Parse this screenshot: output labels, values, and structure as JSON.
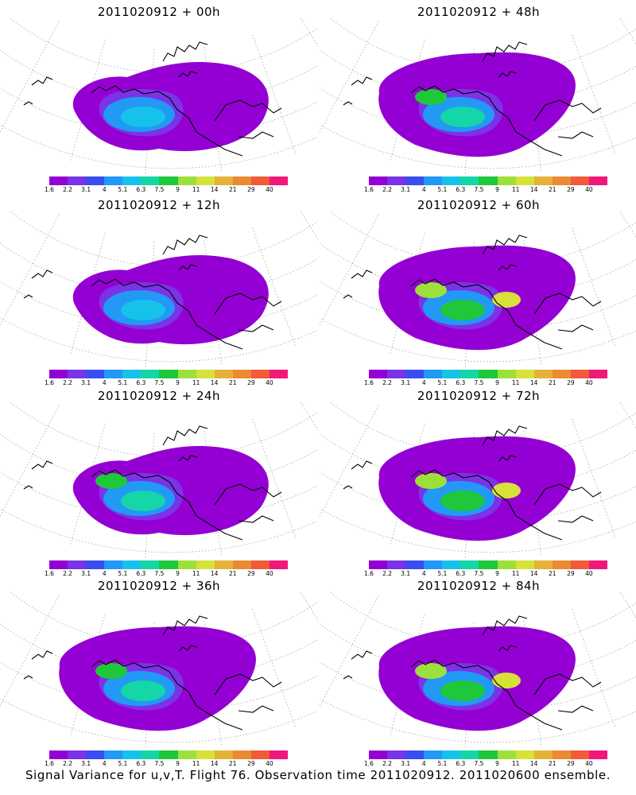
{
  "colorbar": {
    "colors": [
      "#9400d3",
      "#7a33e6",
      "#3a4df0",
      "#2299f5",
      "#17c2ea",
      "#15d6a6",
      "#1fc83a",
      "#9ee03b",
      "#d8e03a",
      "#e4b238",
      "#ec8a34",
      "#f25a3a",
      "#f0187a"
    ],
    "tick_labels": [
      "1.6",
      "2.2",
      "3.1",
      "4",
      "5.1",
      "6.3",
      "7.5",
      "9",
      "11",
      "14",
      "21",
      "29",
      "40"
    ]
  },
  "panels": [
    {
      "title": "2011020912 + 00h"
    },
    {
      "title": "2011020912 + 48h"
    },
    {
      "title": "2011020912 + 12h"
    },
    {
      "title": "2011020912 + 60h"
    },
    {
      "title": "2011020912 + 24h"
    },
    {
      "title": "2011020912 + 72h"
    },
    {
      "title": "2011020912 + 36h"
    },
    {
      "title": "2011020912 + 84h"
    }
  ],
  "caption": "Signal Variance for u,v,T. Flight 76. Observation time 2011020912. 2011020600 ensemble."
}
